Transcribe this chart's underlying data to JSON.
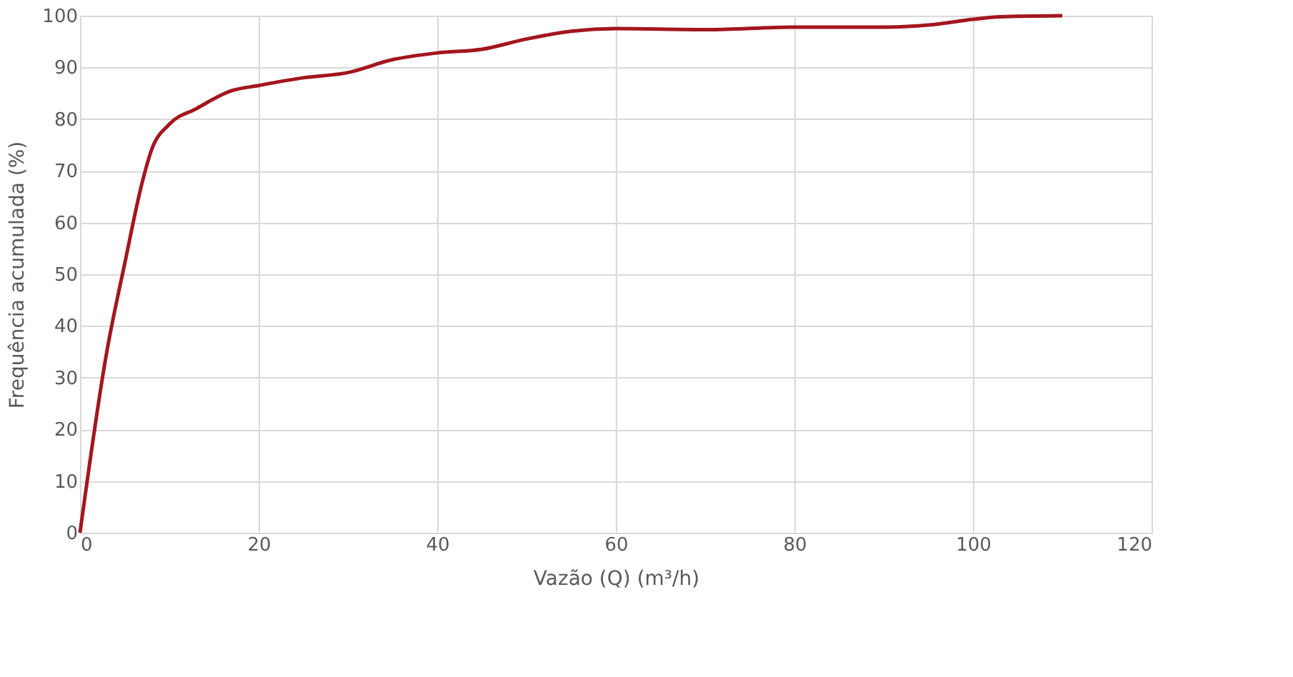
{
  "chart_data": {
    "type": "line",
    "xlabel": "Vazão (Q) (m³/h)",
    "ylabel": "Frequência acumulada (%)",
    "x": [
      0,
      3,
      5,
      7,
      8,
      10,
      13,
      17,
      20,
      25,
      30,
      35,
      40,
      45,
      50,
      55,
      60,
      70,
      80,
      90,
      95,
      100,
      103,
      110
    ],
    "series": [
      {
        "color": "#a3161f",
        "values": [
          0,
          35,
          52,
          68,
          74,
          79,
          82,
          85.5,
          86.5,
          88,
          89,
          91.5,
          92.8,
          93.5,
          95.5,
          97,
          97.5,
          97.3,
          97.8,
          97.8,
          98.2,
          99.3,
          99.8,
          100
        ]
      }
    ],
    "xlim": [
      0,
      120
    ],
    "xticks": [
      0,
      20,
      40,
      60,
      80,
      100,
      120
    ],
    "ylim": [
      0,
      100
    ],
    "yticks": [
      0,
      10,
      20,
      30,
      40,
      50,
      60,
      70,
      80,
      90,
      100
    ],
    "grid": true,
    "marker": "none",
    "line_style": "solid"
  }
}
